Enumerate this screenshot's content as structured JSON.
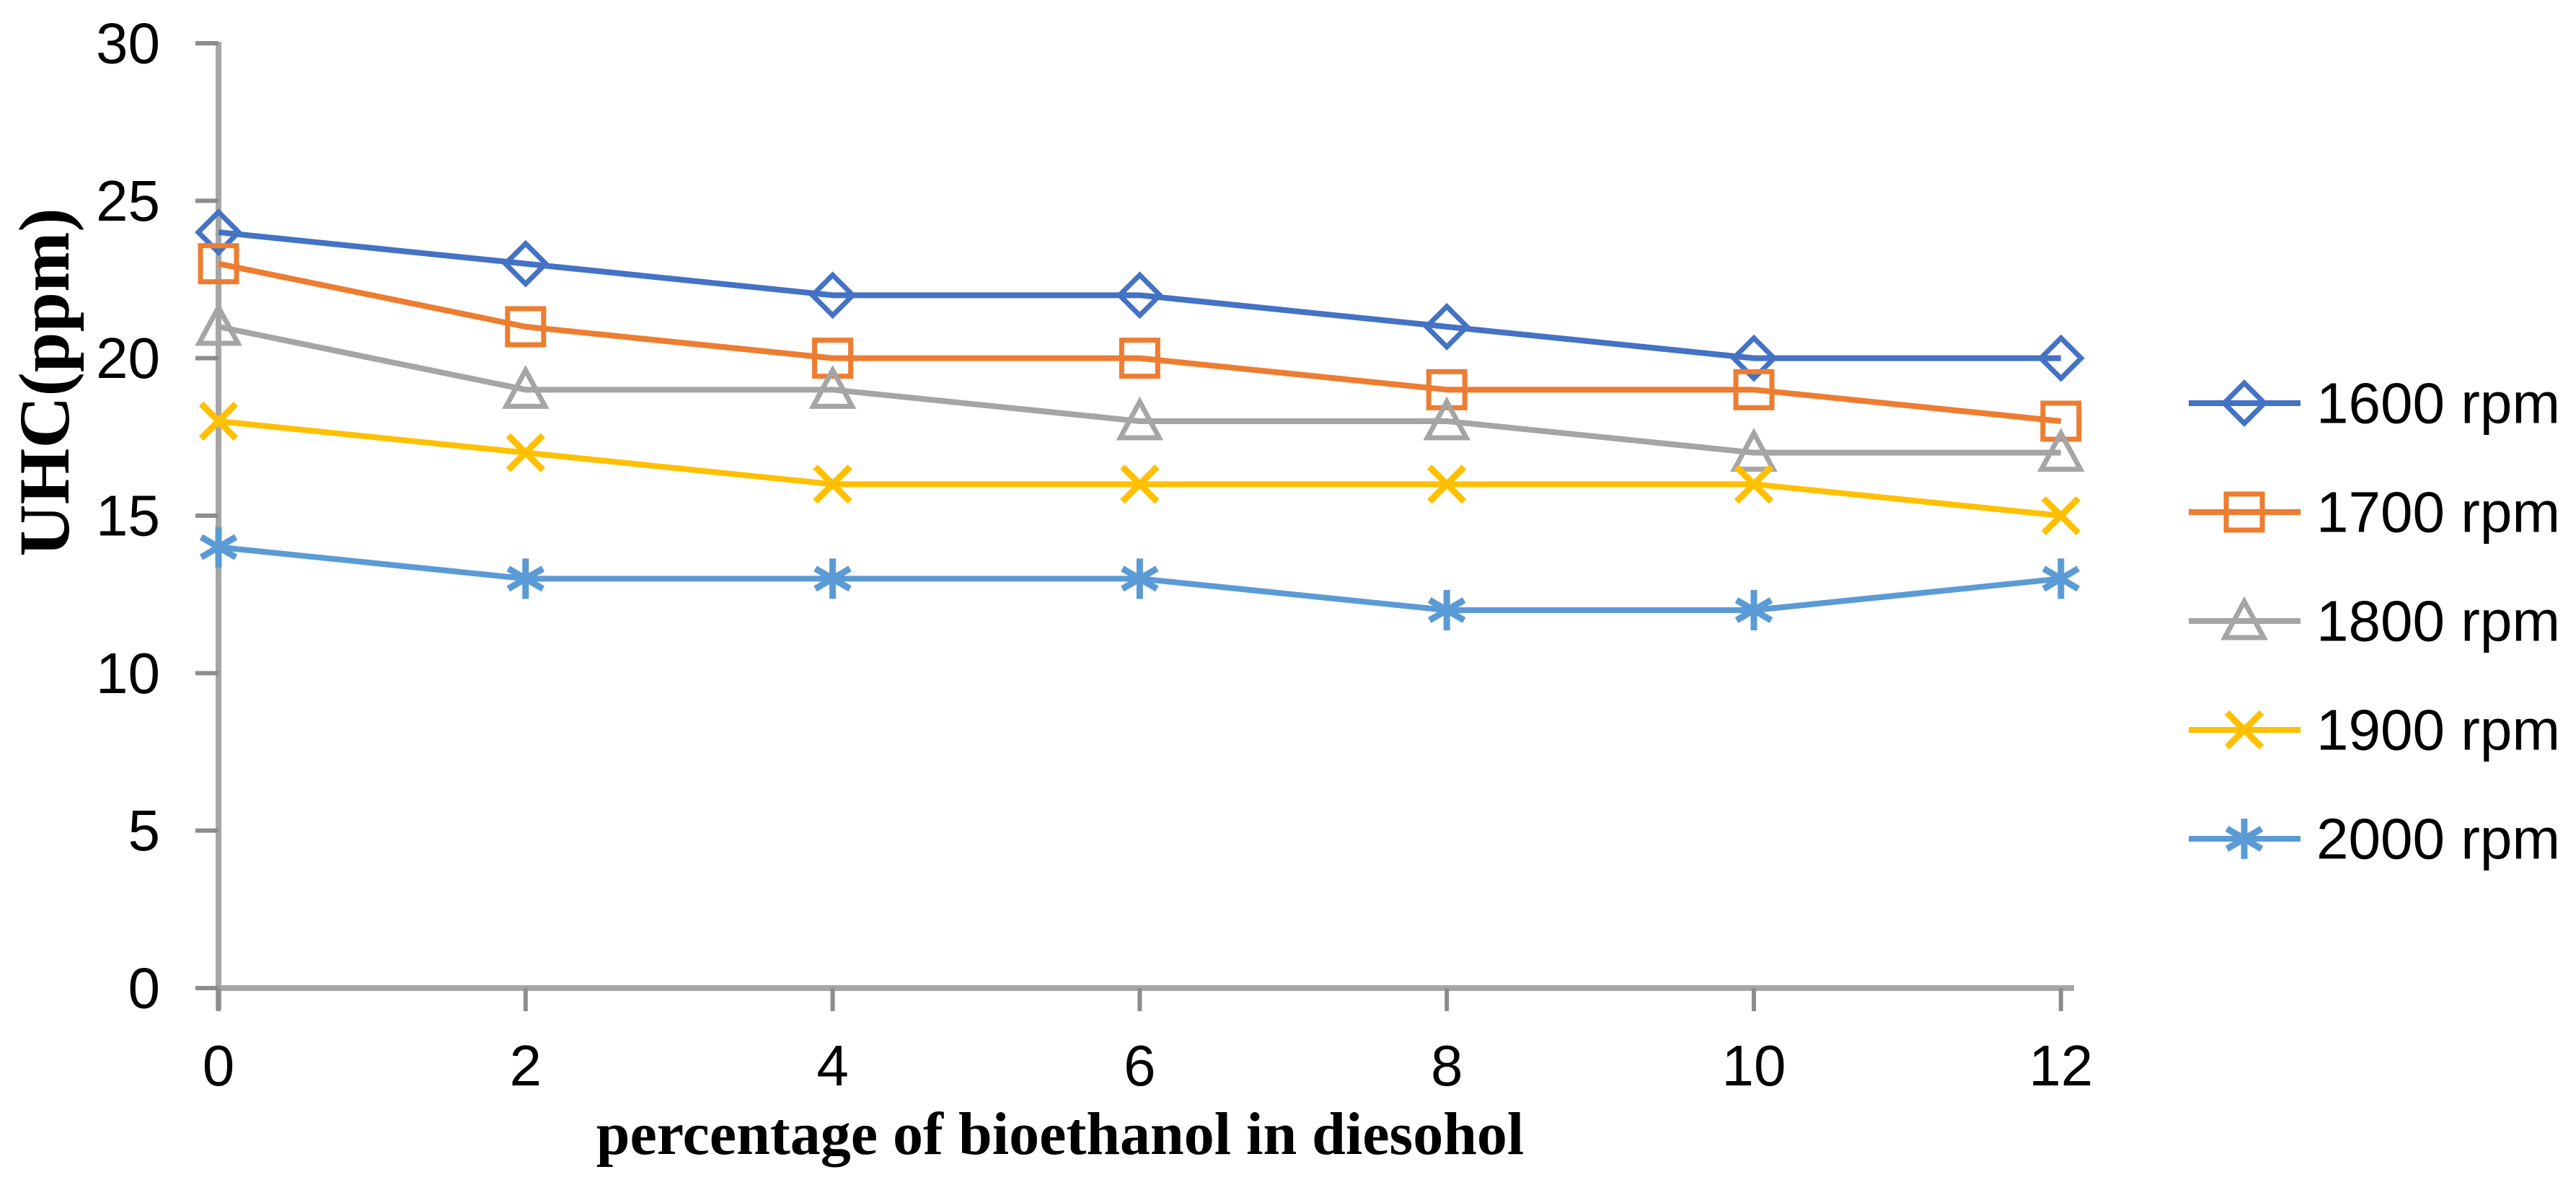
{
  "figure": {
    "background": "#ffffff",
    "axis_color": "#A6A6A6",
    "tick_color": "#8C8C8C",
    "text_color": "#000000"
  },
  "chart_data": {
    "type": "line",
    "title": "",
    "xlabel": "percentage of bioethanol in diesohol",
    "ylabel": "UHC(ppm)",
    "x": [
      0,
      2,
      4,
      6,
      8,
      10,
      12
    ],
    "x_ticks": [
      0,
      2,
      4,
      6,
      8,
      10,
      12
    ],
    "y_ticks": [
      0,
      5,
      10,
      15,
      20,
      25,
      30
    ],
    "xlim": [
      0,
      12
    ],
    "ylim": [
      0,
      30
    ],
    "grid": false,
    "legend_position": "right",
    "series": [
      {
        "name": "1600 rpm",
        "color": "#4472C4",
        "marker": "diamond",
        "values": [
          24,
          23,
          22,
          22,
          21,
          20,
          20
        ]
      },
      {
        "name": "1700 rpm",
        "color": "#ED7D31",
        "marker": "square",
        "values": [
          23,
          21,
          20,
          20,
          19,
          19,
          18
        ]
      },
      {
        "name": "1800 rpm",
        "color": "#A5A5A5",
        "marker": "triangle",
        "values": [
          21,
          19,
          19,
          18,
          18,
          17,
          17
        ]
      },
      {
        "name": "1900 rpm",
        "color": "#FFC000",
        "marker": "x",
        "values": [
          18,
          17,
          16,
          16,
          16,
          16,
          15
        ]
      },
      {
        "name": "2000 rpm",
        "color": "#5B9BD5",
        "marker": "asterisk",
        "values": [
          14,
          13,
          13,
          13,
          12,
          12,
          13
        ]
      }
    ]
  }
}
